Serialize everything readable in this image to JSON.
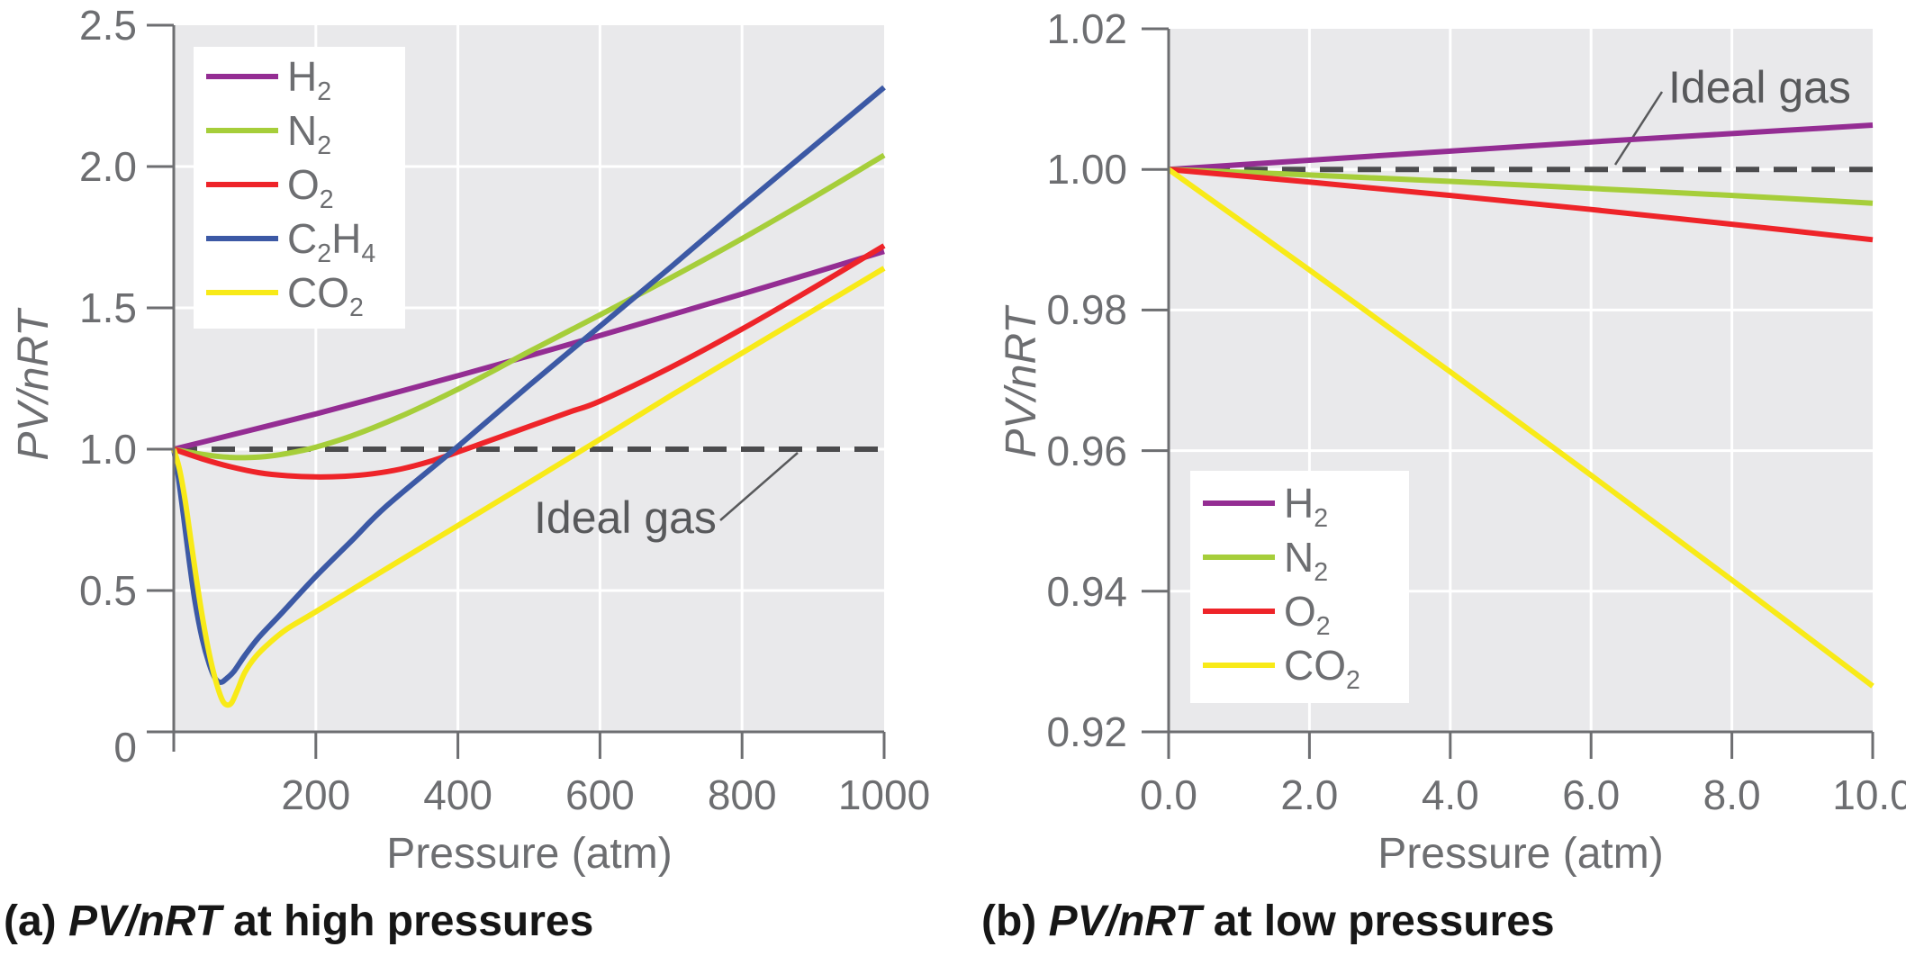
{
  "figure": {
    "kind": "two-panel line chart",
    "background": "#ffffff"
  },
  "colors": {
    "H2": "#942d93",
    "N2": "#a6ce3a",
    "O2": "#ee2429",
    "C2H4": "#3c59a5",
    "CO2": "#f8ea18",
    "plot_bg": "#e9e9eb",
    "grid": "#ffffff",
    "axis": "#6d6e71",
    "tick_text": "#6d6e71",
    "annotation_text": "#58595b",
    "ideal_dash": "#4b4b4d",
    "caption_text": "#161616"
  },
  "chart_data": [
    {
      "id": "a",
      "type": "line",
      "caption": [
        {
          "t": "(a) "
        },
        {
          "t": "PV/nRT",
          "italic": true
        },
        {
          "t": " at high pressures"
        }
      ],
      "xlabel": "Pressure (atm)",
      "ylabel": "PV/nRT",
      "xlim": [
        0,
        1000
      ],
      "ylim": [
        0,
        2.5
      ],
      "grid": true,
      "legend_position": "top-left",
      "annotation": {
        "label": "Ideal gas"
      },
      "ideal_value": 1.0,
      "x_ticks": [
        {
          "v": 200,
          "label": "200"
        },
        {
          "v": 400,
          "label": "400"
        },
        {
          "v": 600,
          "label": "600"
        },
        {
          "v": 800,
          "label": "800"
        },
        {
          "v": 1000,
          "label": "1000"
        }
      ],
      "y_ticks": [
        {
          "v": 0,
          "label": "0",
          "dy": 17
        },
        {
          "v": 0.5,
          "label": "0.5"
        },
        {
          "v": 1.0,
          "label": "1.0"
        },
        {
          "v": 1.5,
          "label": "1.5"
        },
        {
          "v": 2.0,
          "label": "2.0"
        },
        {
          "v": 2.5,
          "label": "2.5"
        }
      ],
      "series": [
        {
          "key": "H2",
          "color_key": "H2",
          "label_parts": [
            {
              "t": "H"
            },
            {
              "t": "2",
              "sub": true
            }
          ],
          "points": [
            [
              0,
              1.0
            ],
            [
              100,
              1.062
            ],
            [
              200,
              1.125
            ],
            [
              300,
              1.192
            ],
            [
              400,
              1.26
            ],
            [
              500,
              1.33
            ],
            [
              600,
              1.402
            ],
            [
              700,
              1.475
            ],
            [
              800,
              1.549
            ],
            [
              900,
              1.624
            ],
            [
              1000,
              1.7
            ]
          ]
        },
        {
          "key": "N2",
          "color_key": "N2",
          "label_parts": [
            {
              "t": "N"
            },
            {
              "t": "2",
              "sub": true
            }
          ],
          "points": [
            [
              0,
              1.0
            ],
            [
              20,
              0.99
            ],
            [
              40,
              0.982
            ],
            [
              60,
              0.975
            ],
            [
              80,
              0.971
            ],
            [
              100,
              0.97
            ],
            [
              120,
              0.972
            ],
            [
              140,
              0.977
            ],
            [
              160,
              0.985
            ],
            [
              180,
              0.995
            ],
            [
              200,
              1.007
            ],
            [
              240,
              1.038
            ],
            [
              280,
              1.075
            ],
            [
              320,
              1.117
            ],
            [
              360,
              1.163
            ],
            [
              400,
              1.212
            ],
            [
              450,
              1.277
            ],
            [
              500,
              1.345
            ],
            [
              600,
              1.475
            ],
            [
              700,
              1.607
            ],
            [
              800,
              1.745
            ],
            [
              900,
              1.89
            ],
            [
              1000,
              2.04
            ]
          ]
        },
        {
          "key": "O2",
          "color_key": "O2",
          "label_parts": [
            {
              "t": "O"
            },
            {
              "t": "2",
              "sub": true
            }
          ],
          "points": [
            [
              0,
              1.0
            ],
            [
              40,
              0.966
            ],
            [
              80,
              0.938
            ],
            [
              120,
              0.917
            ],
            [
              160,
              0.906
            ],
            [
              200,
              0.902
            ],
            [
              240,
              0.904
            ],
            [
              280,
              0.913
            ],
            [
              320,
              0.93
            ],
            [
              360,
              0.956
            ],
            [
              400,
              0.99
            ],
            [
              440,
              1.026
            ],
            [
              480,
              1.062
            ],
            [
              520,
              1.098
            ],
            [
              560,
              1.134
            ],
            [
              600,
              1.17
            ],
            [
              700,
              1.29
            ],
            [
              800,
              1.425
            ],
            [
              900,
              1.57
            ],
            [
              1000,
              1.72
            ]
          ]
        },
        {
          "key": "C2H4",
          "color_key": "C2H4",
          "label_parts": [
            {
              "t": "C"
            },
            {
              "t": "2",
              "sub": true
            },
            {
              "t": "H"
            },
            {
              "t": "4",
              "sub": true
            }
          ],
          "points": [
            [
              0,
              1.0
            ],
            [
              6,
              0.91
            ],
            [
              14,
              0.76
            ],
            [
              22,
              0.6
            ],
            [
              30,
              0.46
            ],
            [
              40,
              0.33
            ],
            [
              50,
              0.24
            ],
            [
              58,
              0.19
            ],
            [
              66,
              0.175
            ],
            [
              75,
              0.19
            ],
            [
              85,
              0.215
            ],
            [
              100,
              0.27
            ],
            [
              120,
              0.335
            ],
            [
              150,
              0.415
            ],
            [
              200,
              0.55
            ],
            [
              250,
              0.675
            ],
            [
              300,
              0.8
            ],
            [
              400,
              1.01
            ],
            [
              500,
              1.225
            ],
            [
              600,
              1.435
            ],
            [
              700,
              1.645
            ],
            [
              800,
              1.86
            ],
            [
              900,
              2.07
            ],
            [
              1000,
              2.28
            ]
          ]
        },
        {
          "key": "CO2",
          "color_key": "CO2",
          "label_parts": [
            {
              "t": "CO"
            },
            {
              "t": "2",
              "sub": true
            }
          ],
          "points": [
            [
              0,
              1.0
            ],
            [
              8,
              0.93
            ],
            [
              16,
              0.82
            ],
            [
              24,
              0.68
            ],
            [
              32,
              0.54
            ],
            [
              40,
              0.41
            ],
            [
              48,
              0.3
            ],
            [
              56,
              0.21
            ],
            [
              64,
              0.14
            ],
            [
              70,
              0.105
            ],
            [
              76,
              0.095
            ],
            [
              82,
              0.105
            ],
            [
              90,
              0.15
            ],
            [
              100,
              0.21
            ],
            [
              115,
              0.265
            ],
            [
              135,
              0.315
            ],
            [
              160,
              0.365
            ],
            [
              200,
              0.425
            ],
            [
              300,
              0.578
            ],
            [
              400,
              0.73
            ],
            [
              500,
              0.882
            ],
            [
              600,
              1.035
            ],
            [
              700,
              1.19
            ],
            [
              800,
              1.34
            ],
            [
              900,
              1.49
            ],
            [
              1000,
              1.64
            ]
          ]
        }
      ]
    },
    {
      "id": "b",
      "type": "line",
      "caption": [
        {
          "t": "(b) "
        },
        {
          "t": "PV/nRT",
          "italic": true
        },
        {
          "t": " at low pressures"
        }
      ],
      "xlabel": "Pressure (atm)",
      "ylabel": "PV/nRT",
      "xlim": [
        0,
        10
      ],
      "ylim": [
        0.92,
        1.02
      ],
      "grid": true,
      "legend_position": "bottom-left",
      "annotation": {
        "label": "Ideal gas"
      },
      "ideal_value": 1.0,
      "x_ticks": [
        {
          "v": 0,
          "label": "0.0"
        },
        {
          "v": 2,
          "label": "2.0"
        },
        {
          "v": 4,
          "label": "4.0"
        },
        {
          "v": 6,
          "label": "6.0"
        },
        {
          "v": 8,
          "label": "8.0"
        },
        {
          "v": 10,
          "label": "10.0"
        }
      ],
      "y_ticks": [
        {
          "v": 0.92,
          "label": "0.92"
        },
        {
          "v": 0.94,
          "label": "0.94"
        },
        {
          "v": 0.96,
          "label": "0.96"
        },
        {
          "v": 0.98,
          "label": "0.98"
        },
        {
          "v": 1.0,
          "label": "1.00"
        },
        {
          "v": 1.02,
          "label": "1.02"
        }
      ],
      "series": [
        {
          "key": "H2",
          "color_key": "H2",
          "label_parts": [
            {
              "t": "H"
            },
            {
              "t": "2",
              "sub": true
            }
          ],
          "points": [
            [
              0,
              1.0
            ],
            [
              2,
              1.0013
            ],
            [
              4,
              1.0026
            ],
            [
              6,
              1.0039
            ],
            [
              8,
              1.0051
            ],
            [
              10,
              1.0063
            ]
          ]
        },
        {
          "key": "N2",
          "color_key": "N2",
          "label_parts": [
            {
              "t": "N"
            },
            {
              "t": "2",
              "sub": true
            }
          ],
          "points": [
            [
              0,
              1.0
            ],
            [
              2,
              0.9992
            ],
            [
              4,
              0.9983
            ],
            [
              6,
              0.9973
            ],
            [
              8,
              0.9963
            ],
            [
              10,
              0.9952
            ]
          ]
        },
        {
          "key": "O2",
          "color_key": "O2",
          "label_parts": [
            {
              "t": "O"
            },
            {
              "t": "2",
              "sub": true
            }
          ],
          "points": [
            [
              0,
              1.0
            ],
            [
              2,
              0.9982
            ],
            [
              4,
              0.9963
            ],
            [
              6,
              0.9943
            ],
            [
              8,
              0.9922
            ],
            [
              10,
              0.99
            ]
          ]
        },
        {
          "key": "CO2",
          "color_key": "CO2",
          "label_parts": [
            {
              "t": "CO"
            },
            {
              "t": "2",
              "sub": true
            }
          ],
          "points": [
            [
              0,
              1.0
            ],
            [
              2,
              0.9857
            ],
            [
              4,
              0.9712
            ],
            [
              6,
              0.9565
            ],
            [
              8,
              0.9416
            ],
            [
              10,
              0.9265
            ]
          ]
        }
      ]
    }
  ]
}
